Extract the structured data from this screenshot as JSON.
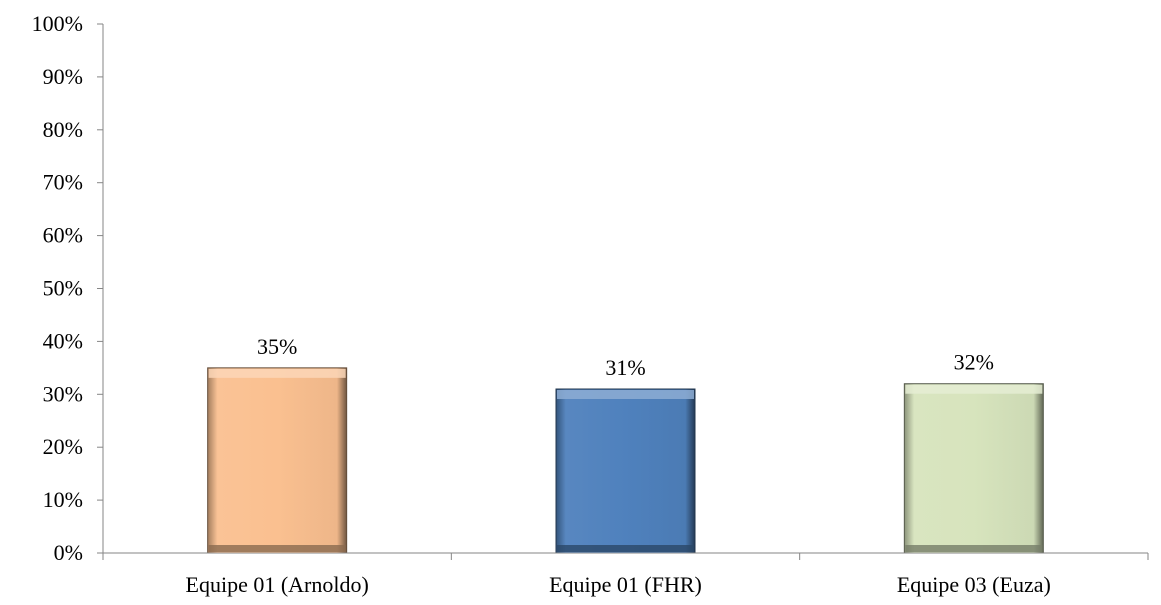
{
  "chart_data": {
    "type": "bar",
    "categories": [
      "Equipe 01 (Arnoldo)",
      "Equipe 01 (FHR)",
      "Equipe 03 (Euza)"
    ],
    "values": [
      35,
      31,
      32
    ],
    "value_labels": [
      "35%",
      "31%",
      "32%"
    ],
    "ylim": [
      0,
      100
    ],
    "yticks": [
      0,
      10,
      20,
      30,
      40,
      50,
      60,
      70,
      80,
      90,
      100
    ],
    "ytick_labels": [
      "0%",
      "10%",
      "20%",
      "30%",
      "40%",
      "50%",
      "60%",
      "70%",
      "80%",
      "90%",
      "100%"
    ],
    "grid": false,
    "legend": "none",
    "colors": [
      "#fac090",
      "#4f81bd",
      "#d7e4bd"
    ]
  }
}
